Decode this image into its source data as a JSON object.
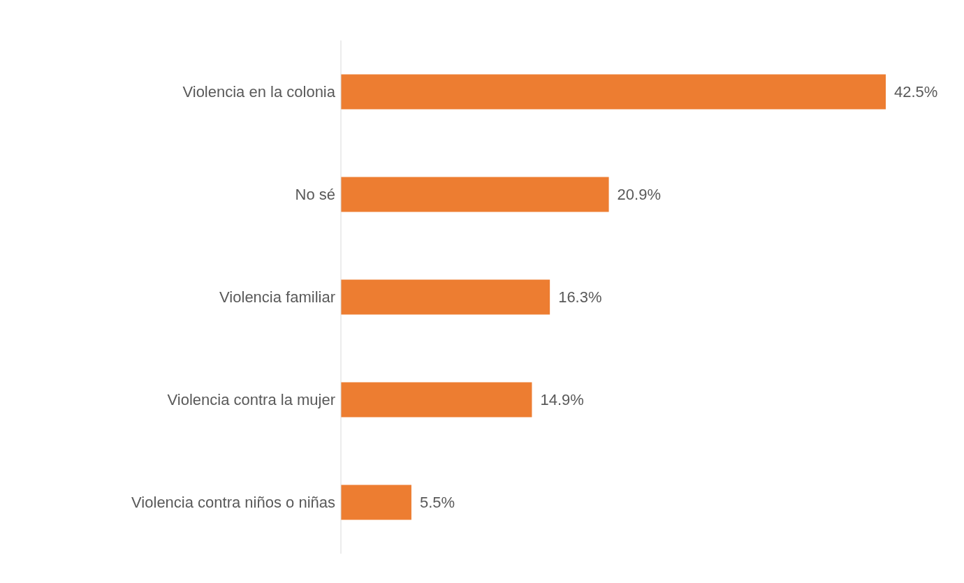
{
  "chart_data": {
    "type": "bar",
    "orientation": "horizontal",
    "categories": [
      "Violencia en la colonia",
      "No sé",
      "Violencia familiar",
      "Violencia contra la mujer",
      "Violencia contra niños o niñas"
    ],
    "values": [
      42.5,
      20.9,
      16.3,
      14.9,
      5.5
    ],
    "value_labels": [
      "42.5%",
      "20.9%",
      "16.3%",
      "14.9%",
      "5.5%"
    ],
    "color": "#ed7d31"
  }
}
